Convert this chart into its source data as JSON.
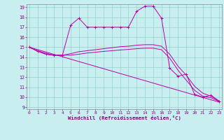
{
  "xlabel": "Windchill (Refroidissement éolien,°C)",
  "background_color": "#c8eef0",
  "grid_color": "#90d4cc",
  "line_color": "#bb00aa",
  "xmin": 0,
  "xmax": 23,
  "ymin": 9,
  "ymax": 19,
  "yticks": [
    9,
    10,
    11,
    12,
    13,
    14,
    15,
    16,
    17,
    18,
    19
  ],
  "xticks": [
    0,
    1,
    2,
    3,
    4,
    5,
    6,
    7,
    8,
    9,
    10,
    11,
    12,
    13,
    14,
    15,
    16,
    17,
    18,
    19,
    20,
    21,
    22,
    23
  ],
  "line1_x": [
    0,
    1,
    2,
    3,
    4,
    5,
    6,
    7,
    8,
    9,
    10,
    11,
    12,
    13,
    14,
    15,
    16,
    17,
    18,
    19,
    20,
    21,
    22,
    23
  ],
  "line1_y": [
    15.0,
    14.6,
    14.3,
    14.2,
    14.2,
    17.2,
    17.9,
    17.0,
    17.0,
    17.0,
    17.0,
    17.0,
    17.0,
    18.6,
    19.1,
    19.1,
    17.9,
    12.9,
    12.1,
    12.3,
    10.3,
    10.0,
    10.2,
    9.6
  ],
  "line2_x": [
    0,
    1,
    2,
    3,
    4,
    5,
    6,
    7,
    8,
    9,
    10,
    11,
    12,
    13,
    14,
    15,
    16,
    17,
    18,
    19,
    20,
    21,
    22,
    23
  ],
  "line2_y": [
    15.0,
    14.6,
    14.3,
    14.2,
    14.2,
    14.35,
    14.55,
    14.65,
    14.75,
    14.85,
    14.95,
    15.05,
    15.1,
    15.2,
    15.25,
    15.25,
    15.1,
    14.3,
    13.1,
    12.2,
    11.1,
    10.4,
    10.1,
    9.6
  ],
  "line3_x": [
    0,
    1,
    2,
    3,
    4,
    5,
    6,
    7,
    8,
    9,
    10,
    11,
    12,
    13,
    14,
    15,
    16,
    17,
    18,
    19,
    20,
    21,
    22,
    23
  ],
  "line3_y": [
    15.0,
    14.65,
    14.4,
    14.2,
    14.2,
    14.2,
    14.3,
    14.42,
    14.5,
    14.58,
    14.65,
    14.72,
    14.78,
    14.85,
    14.9,
    14.9,
    14.75,
    13.9,
    12.7,
    11.7,
    10.7,
    10.1,
    9.95,
    9.55
  ],
  "line4_x": [
    0,
    23
  ],
  "line4_y": [
    15.0,
    9.5
  ]
}
